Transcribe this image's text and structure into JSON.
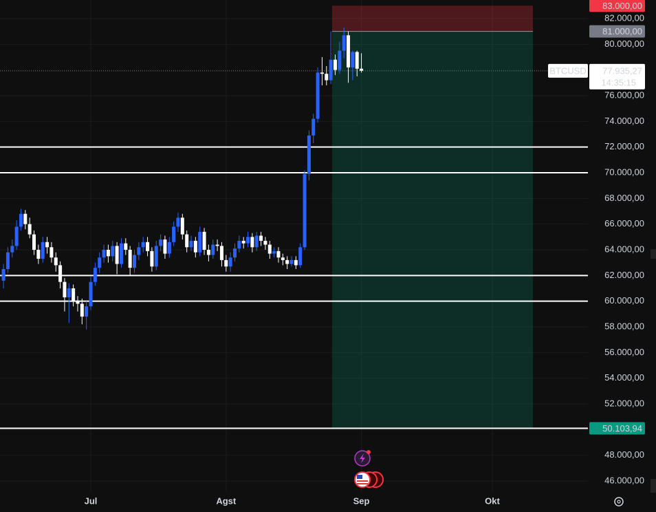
{
  "chart_data": {
    "type": "candlestick",
    "symbol": "BTCUSD",
    "up_color": "#2962ff",
    "down_color": "#ffffff",
    "xlim": [
      -0.8,
      133.9
    ],
    "xticks": [
      {
        "value": 20,
        "label": "Jul"
      },
      {
        "value": 51,
        "label": "Agst"
      },
      {
        "value": 82,
        "label": "Sep"
      },
      {
        "value": 112,
        "label": "Okt"
      }
    ],
    "ylim": [
      45143,
      83446
    ],
    "yticks": [
      {
        "value": 46000,
        "label": "46.000,00"
      },
      {
        "value": 48000,
        "label": "48.000,00"
      },
      {
        "value": 50000,
        "label": "50.000,00"
      },
      {
        "value": 52000,
        "label": "52.000,00"
      },
      {
        "value": 54000,
        "label": "54.000,00"
      },
      {
        "value": 56000,
        "label": "56.000,00"
      },
      {
        "value": 58000,
        "label": "58.000,00"
      },
      {
        "value": 60000,
        "label": "60.000,00"
      },
      {
        "value": 62000,
        "label": "62.000,00"
      },
      {
        "value": 64000,
        "label": "64.000,00"
      },
      {
        "value": 66000,
        "label": "66.000,00"
      },
      {
        "value": 68000,
        "label": "68.000,00"
      },
      {
        "value": 70000,
        "label": "70.000,00"
      },
      {
        "value": 72000,
        "label": "72.000,00"
      },
      {
        "value": 74000,
        "label": "74.000,00"
      },
      {
        "value": 76000,
        "label": "76.000,00"
      },
      {
        "value": 80000,
        "label": "80.000,00"
      },
      {
        "value": 82000,
        "label": "82.000,00"
      }
    ],
    "open": [
      61600,
      62500,
      63800,
      64300,
      65800,
      66800,
      66000,
      65200,
      64000,
      63300,
      64600,
      64200,
      63400,
      62800,
      61500,
      60300,
      61000,
      60000,
      59800,
      58800,
      59600,
      61500,
      62600,
      63400,
      64000,
      63500,
      64300,
      62900,
      64500,
      64000,
      62600,
      63600,
      64200,
      64600,
      63900,
      62700,
      64300,
      64800,
      63700,
      64600,
      65800,
      66500,
      65200,
      64200,
      64700,
      63800,
      65400,
      64000,
      63600,
      64400,
      64300,
      63200,
      62700,
      63400,
      64100,
      64700,
      64500,
      65000,
      64200,
      65100,
      64700,
      64400,
      63700,
      63900,
      63400,
      63200,
      62900,
      63200,
      62800,
      64200,
      69900,
      72900,
      74200,
      77800,
      77700,
      77200,
      78800,
      78000,
      79500,
      80700,
      78200,
      79400,
      78100
    ],
    "high": [
      62900,
      64200,
      64800,
      66300,
      67200,
      67100,
      66500,
      65500,
      64400,
      65000,
      65000,
      64600,
      63800,
      63100,
      61800,
      61400,
      61300,
      60400,
      60200,
      60000,
      61900,
      63000,
      63800,
      64400,
      64400,
      64700,
      64600,
      64900,
      64900,
      64300,
      64000,
      64600,
      65000,
      65000,
      64200,
      64700,
      65200,
      65100,
      65000,
      66200,
      66900,
      66800,
      65500,
      65100,
      65000,
      65800,
      65700,
      64400,
      64800,
      64800,
      64600,
      63600,
      63800,
      64500,
      65100,
      65000,
      65400,
      65300,
      65400,
      65400,
      65000,
      64700,
      64200,
      64200,
      63700,
      63500,
      63500,
      63500,
      64500,
      70200,
      73300,
      74600,
      78200,
      79000,
      78300,
      81000,
      79200,
      80200,
      81300,
      81000,
      79500,
      79500,
      79300
    ],
    "low": [
      61000,
      62200,
      63400,
      64000,
      65500,
      65600,
      64900,
      63600,
      62900,
      63000,
      63700,
      63000,
      62300,
      61000,
      59200,
      58300,
      59600,
      59200,
      58200,
      57800,
      59300,
      61200,
      62200,
      63000,
      63000,
      63100,
      62100,
      62600,
      63600,
      62000,
      62200,
      63200,
      63800,
      63500,
      62300,
      62400,
      63900,
      63300,
      63400,
      64300,
      65400,
      64800,
      63800,
      63900,
      63400,
      63500,
      63600,
      63100,
      63300,
      63900,
      62700,
      62300,
      62300,
      63100,
      63800,
      64100,
      64200,
      63800,
      63900,
      64300,
      64000,
      63300,
      63400,
      63000,
      62800,
      62500,
      62700,
      62500,
      62600,
      64000,
      69400,
      72300,
      73900,
      76800,
      76800,
      76900,
      77600,
      77700,
      78900,
      77000,
      77200,
      77500,
      77800
    ],
    "close": [
      62500,
      63800,
      64300,
      65800,
      66800,
      66000,
      65200,
      64000,
      63300,
      64600,
      64200,
      63400,
      62800,
      61500,
      60300,
      61000,
      60000,
      59800,
      58800,
      59600,
      61500,
      62600,
      63400,
      64000,
      63500,
      64300,
      62900,
      64500,
      64000,
      62600,
      63600,
      64200,
      64600,
      63900,
      62700,
      64300,
      64800,
      63700,
      64600,
      65800,
      66500,
      65200,
      64200,
      64700,
      63800,
      65400,
      64000,
      63600,
      64400,
      64300,
      63200,
      62700,
      63400,
      64100,
      64700,
      64500,
      65000,
      64200,
      65100,
      64700,
      64400,
      63700,
      63900,
      63400,
      63200,
      62900,
      63200,
      62800,
      64200,
      69900,
      72900,
      74200,
      77800,
      77700,
      77200,
      78800,
      78000,
      79500,
      80700,
      78200,
      79400,
      78100,
      77935.27
    ],
    "levels": [
      72000,
      70000,
      62000,
      60000
    ],
    "position": {
      "stop": {
        "value": 83000,
        "label": "83.000,00"
      },
      "entry": {
        "value": 81000,
        "label": "81.000,00"
      },
      "target": {
        "value": 50103.94,
        "label": "50.103,94"
      }
    },
    "last_price": {
      "value": 77935.27,
      "label": "77.935,27",
      "countdown": "14:35:15"
    }
  }
}
